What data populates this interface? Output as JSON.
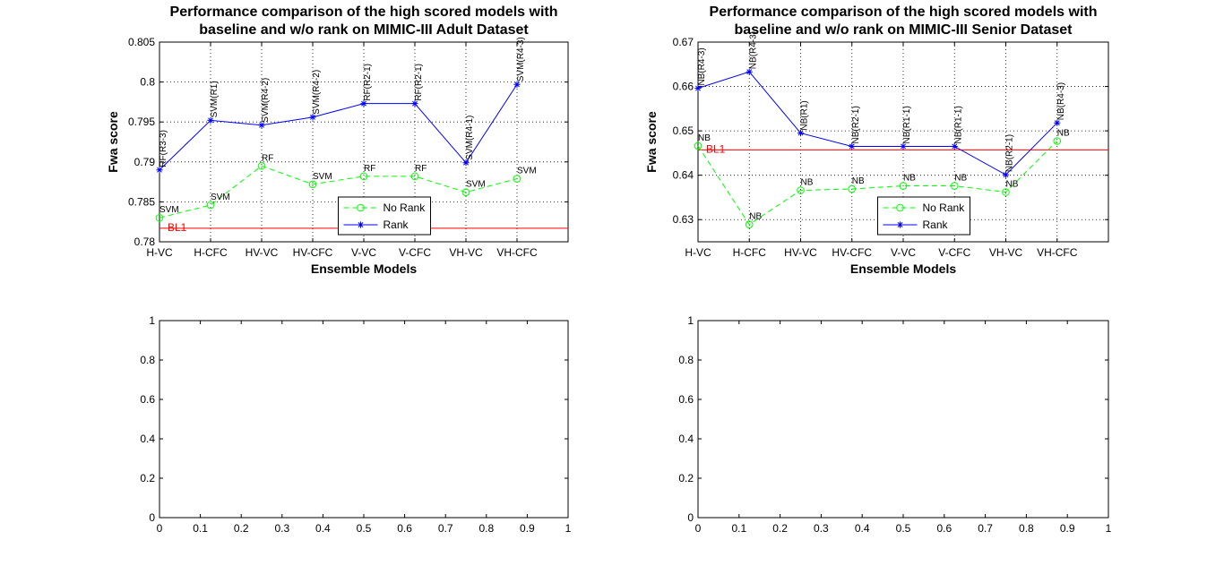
{
  "chart_data": [
    {
      "type": "line",
      "title_lines": [
        "Performance comparison of the high scored models with",
        "baseline and w/o rank on MIMIC-III Adult Dataset"
      ],
      "xlabel": "Ensemble Models",
      "ylabel": "Fwa score",
      "categories": [
        "H-VC",
        "H-CFC",
        "HV-VC",
        "HV-CFC",
        "V-VC",
        "V-CFC",
        "VH-VC",
        "VH-CFC"
      ],
      "ylim": [
        0.78,
        0.805
      ],
      "yticks": [
        "0.78",
        "0.785",
        "0.79",
        "0.795",
        "0.8",
        "0.805"
      ],
      "grid": true,
      "legend_position": "lower-center",
      "baseline": {
        "label": "BL1",
        "value": 0.7817,
        "color": "#ff0000"
      },
      "series": [
        {
          "name": "No Rank",
          "style": "dashed",
          "marker": "circle",
          "color": "#00ff00",
          "values": [
            0.783,
            0.7846,
            0.7895,
            0.7872,
            0.7882,
            0.7882,
            0.7862,
            0.7879
          ],
          "labels": [
            "SVM",
            "SVM",
            "RF",
            "SVM",
            "RF",
            "RF",
            "SVM",
            "SVM"
          ]
        },
        {
          "name": "Rank",
          "style": "solid",
          "marker": "star",
          "color": "#0000ff",
          "values": [
            0.789,
            0.7952,
            0.7946,
            0.7956,
            0.7973,
            0.7973,
            0.7899,
            0.7997
          ],
          "labels": [
            "RF(R3-3)",
            "SVM(R1)",
            "SVM(R4-2)",
            "SVM(R4-2)",
            "RF(R2-1)",
            "RF(R2-1)",
            "SVM(R4-1)",
            "SVM(R4-3)"
          ]
        }
      ]
    },
    {
      "type": "line",
      "title_lines": [
        "Performance comparison of the high scored models with",
        "baseline and w/o rank on MIMIC-III Senior Dataset"
      ],
      "xlabel": "Ensemble Models",
      "ylabel": "Fwa score",
      "categories": [
        "H-VC",
        "H-CFC",
        "HV-VC",
        "HV-CFC",
        "V-VC",
        "V-CFC",
        "VH-VC",
        "VH-CFC"
      ],
      "ylim": [
        0.625,
        0.67
      ],
      "yticks": [
        "0.63",
        "0.64",
        "0.65",
        "0.66",
        "0.67"
      ],
      "grid": true,
      "legend_position": "lower-center",
      "baseline": {
        "label": "BL1",
        "value": 0.6457,
        "color": "#ff0000"
      },
      "series": [
        {
          "name": "No Rank",
          "style": "dashed",
          "marker": "circle",
          "color": "#00ff00",
          "values": [
            0.6466,
            0.6289,
            0.6366,
            0.6369,
            0.6376,
            0.6376,
            0.6362,
            0.6477
          ],
          "labels": [
            "NB",
            "NB",
            "NB",
            "NB",
            "NB",
            "NB",
            "NB",
            "NB"
          ]
        },
        {
          "name": "Rank",
          "style": "solid",
          "marker": "star",
          "color": "#0000ff",
          "values": [
            0.6596,
            0.6633,
            0.6495,
            0.6465,
            0.6465,
            0.6465,
            0.6401,
            0.6518
          ],
          "labels": [
            "NB(R4-3)",
            "NB(R4-3)",
            "NB(R1)",
            "NB(R2-1)",
            "NB(R1-1)",
            "NB(R1-1)",
            "NB(R2-1)",
            "NB(R4-3)"
          ]
        }
      ]
    },
    {
      "type": "line",
      "xlim": [
        0,
        1
      ],
      "ylim": [
        0,
        1
      ],
      "xticks": [
        "0",
        "0.1",
        "0.2",
        "0.3",
        "0.4",
        "0.5",
        "0.6",
        "0.7",
        "0.8",
        "0.9",
        "1"
      ],
      "yticks": [
        "0",
        "0.2",
        "0.4",
        "0.6",
        "0.8",
        "1"
      ],
      "series": []
    },
    {
      "type": "line",
      "xlim": [
        0,
        1
      ],
      "ylim": [
        0,
        1
      ],
      "xticks": [
        "0",
        "0.1",
        "0.2",
        "0.3",
        "0.4",
        "0.5",
        "0.6",
        "0.7",
        "0.8",
        "0.9",
        "1"
      ],
      "yticks": [
        "0",
        "0.2",
        "0.4",
        "0.6",
        "0.8",
        "1"
      ],
      "series": []
    }
  ]
}
